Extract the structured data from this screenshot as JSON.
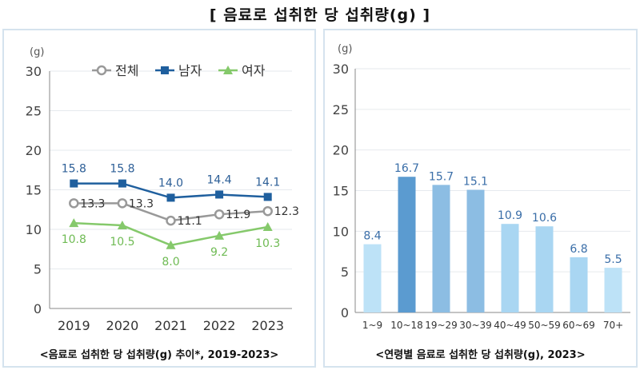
{
  "page": {
    "title": "[ 음료로 섭취한 당 섭취량(g) ]"
  },
  "colors": {
    "total": "#999999",
    "male": "#1f5f9e",
    "female": "#85c96b",
    "grid": "#e6eaee",
    "panel_border": "#d5e3ee",
    "bar_highlight": "#5b9bd0",
    "bar_mid": "#8cbde3",
    "bar_light": "#a9d6f2",
    "bar_pale": "#bde2f7",
    "bar_label": "#3a6ea8"
  },
  "chart_data": [
    {
      "type": "line",
      "caption": "<음료로 섭취한 당 섭취량(g) 추이*, 2019-2023>",
      "ylabel": "(g)",
      "ylim": [
        0,
        30
      ],
      "yticks": [
        0,
        5,
        10,
        15,
        20,
        25,
        30
      ],
      "x": [
        "2019",
        "2020",
        "2021",
        "2022",
        "2023"
      ],
      "grid": true,
      "legend_position": "top",
      "series": [
        {
          "name": "전체",
          "key": "total",
          "marker": "circle",
          "values": [
            13.3,
            13.3,
            11.1,
            11.9,
            12.3
          ]
        },
        {
          "name": "남자",
          "key": "male",
          "marker": "square",
          "values": [
            15.8,
            15.8,
            14.0,
            14.4,
            14.1
          ]
        },
        {
          "name": "여자",
          "key": "female",
          "marker": "triangle",
          "values": [
            10.8,
            10.5,
            8.0,
            9.2,
            10.3
          ]
        }
      ]
    },
    {
      "type": "bar",
      "caption": "<연령별 음료로 섭취한 당 섭취량(g), 2023>",
      "ylabel": "(g)",
      "ylim": [
        0,
        30
      ],
      "yticks": [
        0,
        5,
        10,
        15,
        20,
        25,
        30
      ],
      "grid": true,
      "categories": [
        "1~9",
        "10~18",
        "19~29",
        "30~39",
        "40~49",
        "50~59",
        "60~69",
        "70+"
      ],
      "values": [
        8.4,
        16.7,
        15.7,
        15.1,
        10.9,
        10.6,
        6.8,
        5.5
      ],
      "bar_colors": [
        "#bde2f7",
        "#5b9bd0",
        "#8cbde3",
        "#8cbde3",
        "#a9d6f2",
        "#a9d6f2",
        "#a9d6f2",
        "#bde2f7"
      ]
    }
  ]
}
